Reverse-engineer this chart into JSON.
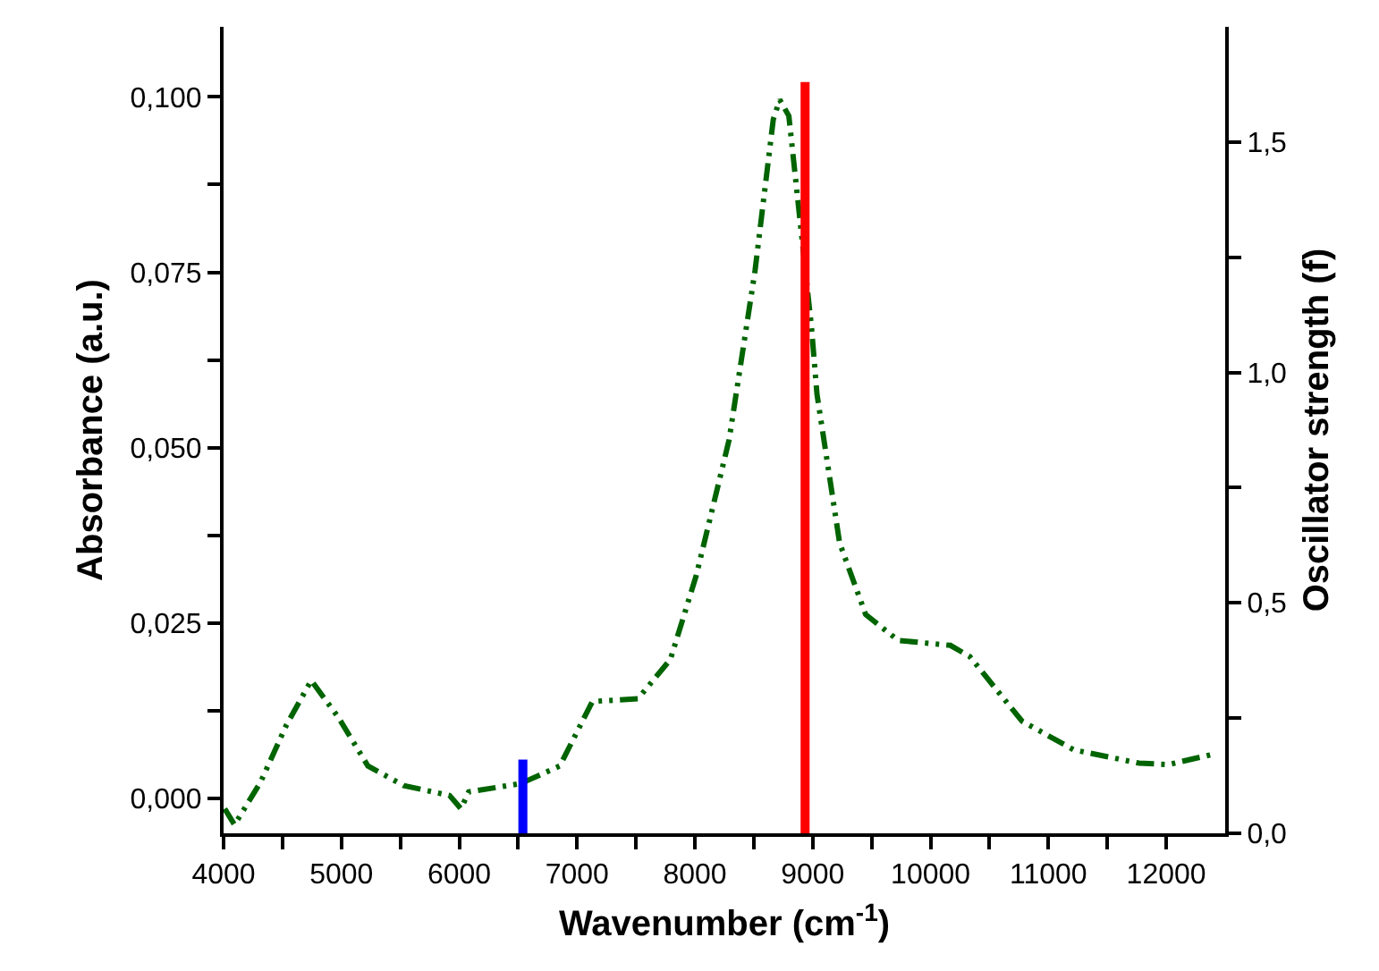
{
  "chart_data": {
    "type": "line",
    "xlabel": "Wavenumber (cm$^{-1}$)",
    "ylabel": "Absorbance (a.u.)",
    "y2label": "Oscillator strength (f)",
    "series": [
      {
        "color": "#006400",
        "line_style": "dashed",
        "x": [
          4010,
          4093,
          4314,
          4535,
          4744,
          4975,
          5225,
          5529,
          5917,
          6015,
          6080,
          6522,
          6853,
          7130,
          7517,
          7792,
          8012,
          8290,
          8510,
          8665,
          8720,
          8797,
          8990,
          9036,
          9228,
          9449,
          9726,
          10168,
          10333,
          10775,
          11216,
          11769,
          12017,
          12431
        ],
        "values": [
          -0.0015,
          -0.0038,
          0.0023,
          0.0105,
          0.0168,
          0.0115,
          0.0046,
          0.0018,
          0.0004,
          -0.0015,
          0.0009,
          0.0021,
          0.0046,
          0.0138,
          0.0142,
          0.0198,
          0.0318,
          0.0511,
          0.0752,
          0.0968,
          0.0996,
          0.0973,
          0.067,
          0.0576,
          0.0364,
          0.0262,
          0.0225,
          0.0218,
          0.0202,
          0.011,
          0.0069,
          0.005,
          0.0048,
          0.0064
        ]
      },
      {
        "type": "bar",
        "axis": "y2",
        "x": [
          6540,
          8935
        ],
        "values": [
          0.16,
          1.63
        ],
        "colors": [
          "#0000ff",
          "#ff0000"
        ]
      }
    ],
    "xlim": [
      4000,
      12500
    ],
    "xticks": [
      4000,
      {
        "value": 4500,
        "label": null
      },
      5000,
      {
        "value": 5500,
        "label": null
      },
      6000,
      {
        "value": 6500,
        "label": null
      },
      7000,
      {
        "value": 7500,
        "label": null
      },
      8000,
      {
        "value": 8500,
        "label": null
      },
      9000,
      {
        "value": 9500,
        "label": null
      },
      10000,
      {
        "value": 10500,
        "label": null
      },
      11000,
      {
        "value": 11500,
        "label": null
      },
      12000
    ],
    "ylim": [
      -0.005,
      0.11
    ],
    "yticks": [
      {
        "value": 0,
        "label": "0,000"
      },
      {
        "value": 0.0125,
        "label": null
      },
      {
        "value": 0.025,
        "label": "0,025"
      },
      {
        "value": 0.0375,
        "label": null
      },
      {
        "value": 0.05,
        "label": "0,050"
      },
      {
        "value": 0.0625,
        "label": null
      },
      {
        "value": 0.075,
        "label": "0,075"
      },
      {
        "value": 0.0875,
        "label": null
      },
      {
        "value": 0.1,
        "label": "0,100"
      }
    ],
    "y2lim": [
      0,
      1.75
    ],
    "y2ticks": [
      {
        "value": 0,
        "label": "0,0"
      },
      {
        "value": 0.25,
        "label": null
      },
      {
        "value": 0.5,
        "label": "0,5"
      },
      {
        "value": 0.75,
        "label": null
      },
      {
        "value": 1.0,
        "label": "1,0"
      },
      {
        "value": 1.25,
        "label": null
      },
      {
        "value": 1.5,
        "label": "1,5"
      }
    ],
    "marker": "none"
  }
}
